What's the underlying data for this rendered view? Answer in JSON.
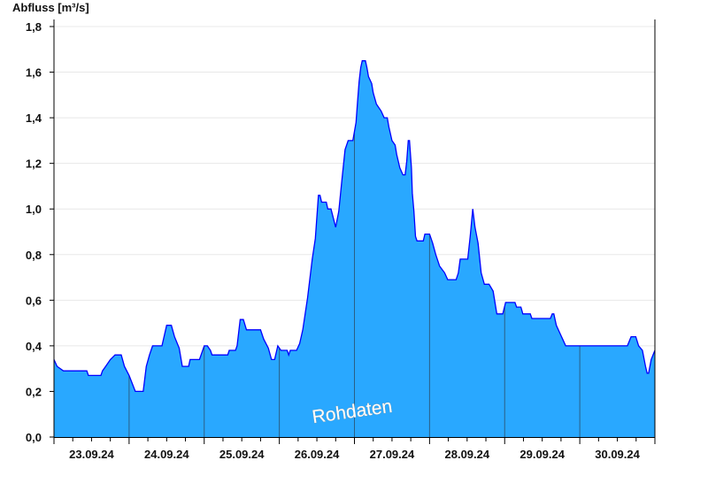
{
  "chart_data": {
    "type": "area",
    "title": "",
    "ylabel": "Abfluss [m³/s]",
    "xlabel": "",
    "ylim": [
      0,
      1.8
    ],
    "yticks": [
      "0,0",
      "0,2",
      "0,4",
      "0,6",
      "0,8",
      "1,0",
      "1,2",
      "1,4",
      "1,6",
      "1,8"
    ],
    "xlim": [
      "23.09.24 00:00",
      "01.10.24 00:00"
    ],
    "xtick_labels": [
      "23.09.24",
      "24.09.24",
      "25.09.24",
      "26.09.24",
      "27.09.24",
      "28.09.24",
      "29.09.24",
      "30.09.24"
    ],
    "grid": "horizontal",
    "annotation": "Rohdaten",
    "colors": {
      "fill": "#29a8ff",
      "line": "#0000ff",
      "day_separator": "#2a5f86",
      "grid": "#e8e8e8"
    },
    "series": [
      {
        "points": [
          [
            "23.09.24 00:00",
            0.34
          ],
          [
            "23.09.24 01:00",
            0.31
          ],
          [
            "23.09.24 03:00",
            0.29
          ],
          [
            "23.09.24 10:30",
            0.29
          ],
          [
            "23.09.24 11:00",
            0.27
          ],
          [
            "23.09.24 15:00",
            0.27
          ],
          [
            "23.09.24 15:30",
            0.29
          ],
          [
            "23.09.24 16:30",
            0.31
          ],
          [
            "23.09.24 18:00",
            0.34
          ],
          [
            "23.09.24 19:30",
            0.36
          ],
          [
            "23.09.24 21:30",
            0.36
          ],
          [
            "23.09.24 22:30",
            0.31
          ],
          [
            "24.09.24 00:00",
            0.27
          ],
          [
            "24.09.24 02:00",
            0.2
          ],
          [
            "24.09.24 04:30",
            0.2
          ],
          [
            "24.09.24 05:30",
            0.31
          ],
          [
            "24.09.24 06:30",
            0.36
          ],
          [
            "24.09.24 07:30",
            0.4
          ],
          [
            "24.09.24 10:30",
            0.4
          ],
          [
            "24.09.24 12:00",
            0.49
          ],
          [
            "24.09.24 13:30",
            0.49
          ],
          [
            "24.09.24 14:30",
            0.44
          ],
          [
            "24.09.24 16:00",
            0.39
          ],
          [
            "24.09.24 17:00",
            0.31
          ],
          [
            "24.09.24 19:00",
            0.31
          ],
          [
            "24.09.24 19:30",
            0.34
          ],
          [
            "24.09.24 22:30",
            0.34
          ],
          [
            "25.09.24 00:00",
            0.4
          ],
          [
            "25.09.24 01:00",
            0.4
          ],
          [
            "25.09.24 02:00",
            0.38
          ],
          [
            "25.09.24 02:30",
            0.36
          ],
          [
            "25.09.24 07:30",
            0.36
          ],
          [
            "25.09.24 08:00",
            0.38
          ],
          [
            "25.09.24 10:00",
            0.38
          ],
          [
            "25.09.24 10:30",
            0.4
          ],
          [
            "25.09.24 11:30",
            0.515
          ],
          [
            "25.09.24 12:30",
            0.515
          ],
          [
            "25.09.24 13:30",
            0.47
          ],
          [
            "25.09.24 18:00",
            0.47
          ],
          [
            "25.09.24 19:00",
            0.43
          ],
          [
            "25.09.24 20:30",
            0.39
          ],
          [
            "25.09.24 21:30",
            0.34
          ],
          [
            "25.09.24 22:30",
            0.34
          ],
          [
            "25.09.24 23:30",
            0.4
          ],
          [
            "26.09.24 00:30",
            0.38
          ],
          [
            "26.09.24 02:30",
            0.38
          ],
          [
            "26.09.24 03:00",
            0.36
          ],
          [
            "26.09.24 03:30",
            0.38
          ],
          [
            "26.09.24 05:30",
            0.38
          ],
          [
            "26.09.24 06:30",
            0.41
          ],
          [
            "26.09.24 07:30",
            0.47
          ],
          [
            "26.09.24 09:00",
            0.61
          ],
          [
            "26.09.24 10:30",
            0.78
          ],
          [
            "26.09.24 11:30",
            0.87
          ],
          [
            "26.09.24 12:30",
            1.06
          ],
          [
            "26.09.24 13:00",
            1.06
          ],
          [
            "26.09.24 13:30",
            1.03
          ],
          [
            "26.09.24 15:00",
            1.03
          ],
          [
            "26.09.24 15:30",
            1.0
          ],
          [
            "26.09.24 16:30",
            1.0
          ],
          [
            "26.09.24 18:00",
            0.92
          ],
          [
            "26.09.24 19:00",
            0.99
          ],
          [
            "26.09.24 20:00",
            1.13
          ],
          [
            "26.09.24 21:00",
            1.26
          ],
          [
            "26.09.24 22:00",
            1.3
          ],
          [
            "26.09.24 23:30",
            1.3
          ],
          [
            "27.09.24 00:00",
            1.34
          ],
          [
            "27.09.24 00:30",
            1.38
          ],
          [
            "27.09.24 01:00",
            1.47
          ],
          [
            "27.09.24 01:30",
            1.56
          ],
          [
            "27.09.24 02:00",
            1.62
          ],
          [
            "27.09.24 02:30",
            1.65
          ],
          [
            "27.09.24 03:30",
            1.65
          ],
          [
            "27.09.24 04:00",
            1.62
          ],
          [
            "27.09.24 04:30",
            1.58
          ],
          [
            "27.09.24 05:30",
            1.55
          ],
          [
            "27.09.24 06:00",
            1.51
          ],
          [
            "27.09.24 07:00",
            1.46
          ],
          [
            "27.09.24 08:30",
            1.43
          ],
          [
            "27.09.24 09:30",
            1.4
          ],
          [
            "27.09.24 10:30",
            1.4
          ],
          [
            "27.09.24 11:00",
            1.36
          ],
          [
            "27.09.24 12:00",
            1.3
          ],
          [
            "27.09.24 13:00",
            1.28
          ],
          [
            "27.09.24 13:30",
            1.24
          ],
          [
            "27.09.24 14:30",
            1.18
          ],
          [
            "27.09.24 15:30",
            1.15
          ],
          [
            "27.09.24 16:12",
            1.15
          ],
          [
            "27.09.24 16:42",
            1.21
          ],
          [
            "27.09.24 17:12",
            1.3
          ],
          [
            "27.09.24 17:36",
            1.3
          ],
          [
            "27.09.24 18:12",
            1.18
          ],
          [
            "27.09.24 18:30",
            1.07
          ],
          [
            "27.09.24 19:00",
            0.99
          ],
          [
            "27.09.24 19:30",
            0.88
          ],
          [
            "27.09.24 20:00",
            0.86
          ],
          [
            "27.09.24 22:00",
            0.86
          ],
          [
            "27.09.24 22:30",
            0.89
          ],
          [
            "28.09.24 00:00",
            0.89
          ],
          [
            "28.09.24 01:00",
            0.85
          ],
          [
            "28.09.24 02:00",
            0.8
          ],
          [
            "28.09.24 03:12",
            0.75
          ],
          [
            "28.09.24 04:48",
            0.72
          ],
          [
            "28.09.24 05:48",
            0.69
          ],
          [
            "28.09.24 08:30",
            0.69
          ],
          [
            "28.09.24 09:12",
            0.72
          ],
          [
            "28.09.24 09:48",
            0.78
          ],
          [
            "28.09.24 12:12",
            0.78
          ],
          [
            "28.09.24 13:00",
            0.88
          ],
          [
            "28.09.24 13:48",
            1.0
          ],
          [
            "28.09.24 14:30",
            0.92
          ],
          [
            "28.09.24 15:30",
            0.85
          ],
          [
            "28.09.24 16:30",
            0.72
          ],
          [
            "28.09.24 17:30",
            0.67
          ],
          [
            "28.09.24 19:00",
            0.67
          ],
          [
            "28.09.24 20:18",
            0.64
          ],
          [
            "28.09.24 21:30",
            0.54
          ],
          [
            "28.09.24 23:24",
            0.54
          ],
          [
            "29.09.24 00:18",
            0.59
          ],
          [
            "29.09.24 03:18",
            0.59
          ],
          [
            "29.09.24 03:48",
            0.57
          ],
          [
            "29.09.24 05:12",
            0.57
          ],
          [
            "29.09.24 05:48",
            0.54
          ],
          [
            "29.09.24 08:12",
            0.54
          ],
          [
            "29.09.24 08:42",
            0.52
          ],
          [
            "29.09.24 14:36",
            0.52
          ],
          [
            "29.09.24 15:12",
            0.54
          ],
          [
            "29.09.24 15:42",
            0.54
          ],
          [
            "29.09.24 16:30",
            0.49
          ],
          [
            "29.09.24 17:30",
            0.46
          ],
          [
            "29.09.24 18:30",
            0.43
          ],
          [
            "29.09.24 19:30",
            0.4
          ],
          [
            "30.09.24 15:12",
            0.4
          ],
          [
            "30.09.24 16:24",
            0.44
          ],
          [
            "30.09.24 17:54",
            0.44
          ],
          [
            "30.09.24 18:48",
            0.4
          ],
          [
            "30.09.24 20:00",
            0.38
          ],
          [
            "30.09.24 21:00",
            0.31
          ],
          [
            "30.09.24 21:30",
            0.28
          ],
          [
            "30.09.24 22:00",
            0.28
          ],
          [
            "30.09.24 22:48",
            0.34
          ],
          [
            "01.10.24 00:00",
            0.38
          ]
        ]
      }
    ]
  }
}
